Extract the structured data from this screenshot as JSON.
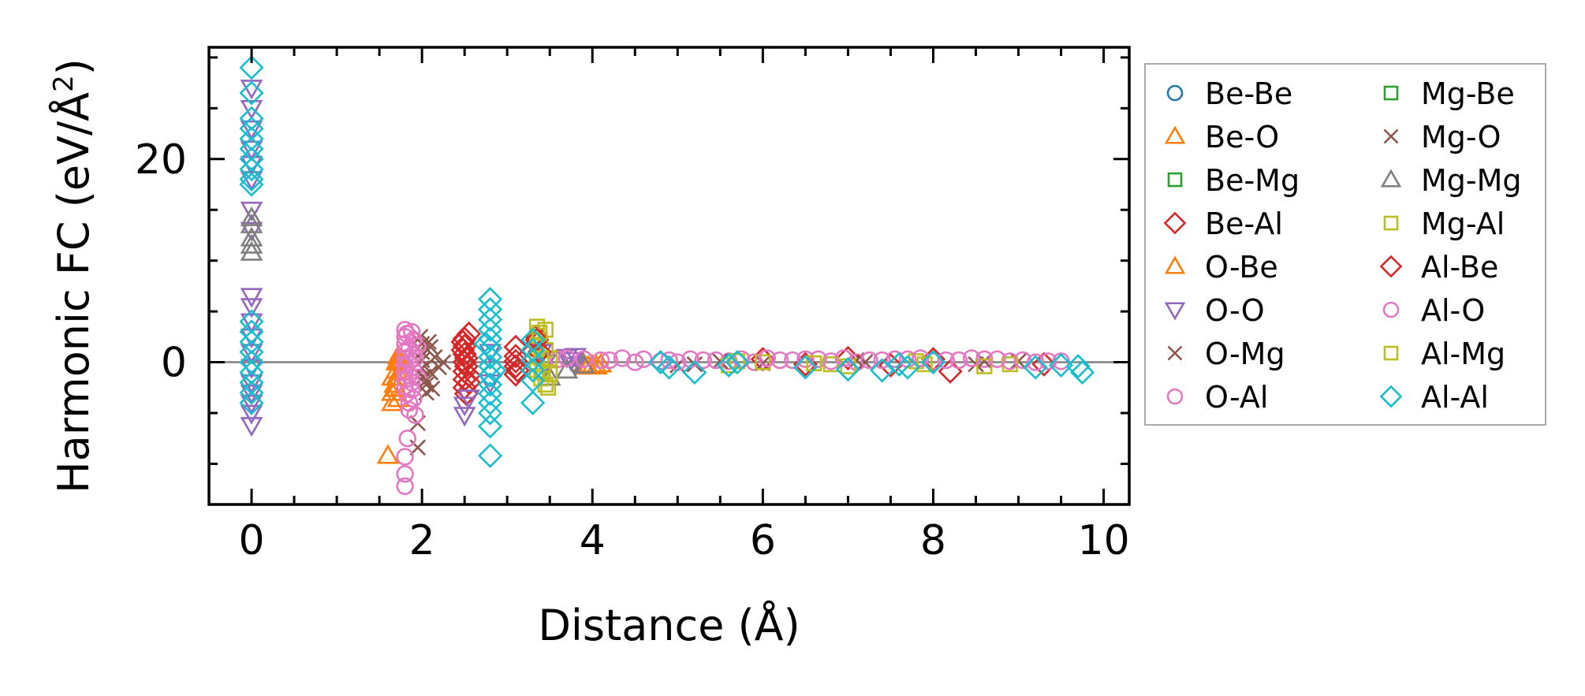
{
  "chart_data": {
    "type": "scatter",
    "title": "",
    "xlabel": "Distance (Å)",
    "ylabel_main": "Harmonic FC (eV/Å",
    "ylabel_sup": "2",
    "ylabel_tail": ")",
    "xlim": [
      -0.5,
      10.3
    ],
    "ylim": [
      -14,
      31
    ],
    "xticks": [
      0,
      2,
      4,
      6,
      8,
      10
    ],
    "xtick_labels": [
      "0",
      "2",
      "4",
      "6",
      "8",
      "10"
    ],
    "yticks": [
      0,
      20
    ],
    "ytick_labels": [
      "0",
      "20"
    ],
    "x_minor_step": 0.5,
    "y_minor_step": 5,
    "zero_line": true,
    "grid": false,
    "legend_position": "outside-right",
    "legend_columns": 2,
    "series": [
      {
        "name": "Be-Be",
        "marker": "circle",
        "color": "#1f77b4",
        "points": []
      },
      {
        "name": "Be-O",
        "marker": "triangle-up",
        "color": "#ff7f0e",
        "points": [
          [
            1.6,
            -9.2
          ],
          [
            1.65,
            -4.0
          ],
          [
            1.65,
            -3.0
          ],
          [
            1.68,
            -2.2
          ],
          [
            1.7,
            -1.5
          ],
          [
            1.7,
            -0.8
          ],
          [
            1.7,
            0.0
          ],
          [
            1.72,
            0.6
          ],
          [
            1.72,
            -3.6
          ],
          [
            1.75,
            -1.0
          ],
          [
            1.75,
            0.3
          ],
          [
            3.95,
            -0.4
          ],
          [
            4.0,
            -0.3
          ],
          [
            4.05,
            -0.4
          ]
        ]
      },
      {
        "name": "Be-Mg",
        "marker": "square",
        "color": "#2ca02c",
        "points": []
      },
      {
        "name": "Be-Al",
        "marker": "diamond",
        "color": "#d62728",
        "points": [
          [
            2.5,
            2.3
          ],
          [
            2.5,
            1.6
          ],
          [
            2.5,
            0.8
          ],
          [
            2.5,
            0.0
          ],
          [
            2.5,
            -0.9
          ],
          [
            2.5,
            -1.7
          ],
          [
            2.5,
            -2.5
          ],
          [
            2.52,
            -3.1
          ],
          [
            2.55,
            2.8
          ],
          [
            2.48,
            1.2
          ],
          [
            2.52,
            -0.4
          ],
          [
            2.55,
            -2.0
          ],
          [
            3.1,
            1.5
          ],
          [
            3.1,
            0.6
          ],
          [
            3.1,
            -0.4
          ],
          [
            3.1,
            -1.2
          ],
          [
            3.35,
            2.5
          ],
          [
            3.35,
            1.8
          ],
          [
            6.0,
            0.3
          ],
          [
            6.5,
            -0.2
          ],
          [
            7.0,
            0.4
          ],
          [
            7.5,
            -0.3
          ],
          [
            8.0,
            0.3
          ],
          [
            8.2,
            -0.9
          ],
          [
            9.3,
            -0.2
          ]
        ]
      },
      {
        "name": "O-Be",
        "marker": "triangle-up",
        "color": "#ff7f0e",
        "points": [
          [
            1.65,
            -1.5
          ],
          [
            1.7,
            -2.6
          ],
          [
            1.72,
            0.2
          ],
          [
            3.9,
            -0.2
          ],
          [
            4.1,
            -0.2
          ]
        ]
      },
      {
        "name": "O-O",
        "marker": "triangle-down",
        "color": "#9467bd",
        "points": [
          [
            0,
            27
          ],
          [
            0,
            25
          ],
          [
            0,
            23
          ],
          [
            0,
            21
          ],
          [
            0,
            19.5
          ],
          [
            0,
            18
          ],
          [
            0,
            15
          ],
          [
            0,
            13
          ],
          [
            0,
            6.5
          ],
          [
            0,
            5.5
          ],
          [
            0,
            4
          ],
          [
            0,
            2.5
          ],
          [
            0,
            1
          ],
          [
            0,
            -0.5
          ],
          [
            0,
            -2
          ],
          [
            0,
            -3
          ],
          [
            0,
            -4
          ],
          [
            0,
            -5
          ],
          [
            0,
            -6.2
          ],
          [
            2.5,
            -5.2
          ],
          [
            2.5,
            -4.2
          ],
          [
            2.55,
            -3.5
          ],
          [
            2.8,
            1.0
          ],
          [
            2.8,
            -2.0
          ],
          [
            3.4,
            1.0
          ],
          [
            3.45,
            0.0
          ],
          [
            3.7,
            0.5
          ],
          [
            3.75,
            0.2
          ],
          [
            3.8,
            0.6
          ],
          [
            3.8,
            -0.3
          ]
        ]
      },
      {
        "name": "O-Mg",
        "marker": "x",
        "color": "#8c564b",
        "points": [
          [
            1.95,
            -8.4
          ],
          [
            1.95,
            -6.0
          ],
          [
            1.98,
            2.5
          ],
          [
            2.0,
            1.8
          ],
          [
            2.0,
            1.0
          ],
          [
            2.0,
            0.2
          ],
          [
            2.0,
            -0.6
          ],
          [
            2.02,
            -1.4
          ],
          [
            2.05,
            -2.2
          ],
          [
            2.05,
            -3.0
          ],
          [
            2.08,
            2.0
          ],
          [
            2.1,
            -1.0
          ],
          [
            2.15,
            0.5
          ],
          [
            2.2,
            -0.5
          ],
          [
            2.25,
            0.0
          ],
          [
            5.0,
            -0.3
          ],
          [
            5.2,
            -0.2
          ],
          [
            7.1,
            0.2
          ],
          [
            8.5,
            -0.2
          ],
          [
            9.0,
            0.1
          ]
        ]
      },
      {
        "name": "O-Al",
        "marker": "circle",
        "color": "#e377c2",
        "points": [
          [
            1.8,
            -12.2
          ],
          [
            1.8,
            -9.3
          ],
          [
            1.83,
            -7.5
          ],
          [
            1.8,
            3.2
          ],
          [
            1.8,
            2.5
          ],
          [
            1.8,
            1.8
          ],
          [
            1.8,
            1.1
          ],
          [
            1.8,
            0.4
          ],
          [
            1.8,
            -0.3
          ],
          [
            1.8,
            -1.0
          ],
          [
            1.8,
            -1.7
          ],
          [
            1.8,
            -2.4
          ],
          [
            1.82,
            -3.1
          ],
          [
            1.85,
            -4.0
          ],
          [
            1.85,
            -4.7
          ],
          [
            1.88,
            3.0
          ],
          [
            1.88,
            -2.0
          ],
          [
            1.9,
            2.2
          ],
          [
            1.9,
            0.8
          ],
          [
            1.9,
            -0.8
          ],
          [
            1.92,
            -5.2
          ],
          [
            1.95,
            1.6
          ],
          [
            1.95,
            -1.5
          ],
          [
            3.6,
            0.3
          ],
          [
            4.2,
            0.2
          ],
          [
            4.5,
            0.0
          ],
          [
            4.8,
            0.1
          ],
          [
            5.0,
            0.0
          ],
          [
            5.3,
            0.2
          ],
          [
            5.6,
            0.1
          ],
          [
            5.9,
            0.0
          ],
          [
            6.2,
            0.2
          ],
          [
            6.5,
            0.3
          ],
          [
            6.8,
            0.1
          ],
          [
            7.1,
            0.0
          ],
          [
            7.4,
            0.2
          ],
          [
            7.7,
            0.3
          ],
          [
            8.0,
            0.1
          ],
          [
            8.3,
            0.2
          ],
          [
            8.6,
            0.3
          ],
          [
            8.9,
            0.1
          ],
          [
            9.2,
            0.0
          ],
          [
            9.5,
            0.1
          ]
        ]
      },
      {
        "name": "Mg-Be",
        "marker": "square",
        "color": "#2ca02c",
        "points": []
      },
      {
        "name": "Mg-O",
        "marker": "x",
        "color": "#8c564b",
        "points": [
          [
            2.05,
            -1.8
          ],
          [
            2.1,
            1.5
          ],
          [
            2.12,
            -2.6
          ],
          [
            5.5,
            0.1
          ],
          [
            6.0,
            -0.1
          ],
          [
            7.2,
            0.0
          ],
          [
            8.6,
            0.1
          ]
        ]
      },
      {
        "name": "Mg-Mg",
        "marker": "triangle-up",
        "color": "#7f7f7f",
        "points": [
          [
            0,
            10.8
          ],
          [
            0,
            11.5
          ],
          [
            0,
            12.2
          ],
          [
            0,
            13.5
          ],
          [
            0,
            14.2
          ],
          [
            3.5,
            -1.5
          ],
          [
            3.7,
            -0.8
          ],
          [
            3.9,
            -0.3
          ]
        ]
      },
      {
        "name": "Mg-Al",
        "marker": "square",
        "color": "#bcbd22",
        "points": [
          [
            3.35,
            3.5
          ],
          [
            3.35,
            2.6
          ],
          [
            3.35,
            1.7
          ],
          [
            3.35,
            0.8
          ],
          [
            3.35,
            0.0
          ],
          [
            3.35,
            -0.8
          ],
          [
            3.4,
            -1.6
          ],
          [
            3.45,
            3.2
          ],
          [
            3.45,
            1.2
          ],
          [
            3.45,
            -2.2
          ],
          [
            3.5,
            0.4
          ],
          [
            3.5,
            -1.2
          ],
          [
            5.6,
            -0.3
          ],
          [
            6.0,
            0.0
          ],
          [
            6.8,
            -0.2
          ],
          [
            7.0,
            -0.4
          ],
          [
            7.8,
            0.1
          ],
          [
            8.6,
            -0.4
          ],
          [
            8.9,
            -0.2
          ]
        ]
      },
      {
        "name": "Al-Be",
        "marker": "diamond",
        "color": "#d62728",
        "points": [
          [
            2.48,
            2.0
          ],
          [
            2.52,
            0.4
          ],
          [
            2.55,
            -1.3
          ],
          [
            3.1,
            0.1
          ],
          [
            3.12,
            -0.8
          ],
          [
            3.35,
            2.2
          ],
          [
            3.38,
            1.0
          ]
        ]
      },
      {
        "name": "Al-O",
        "marker": "circle",
        "color": "#e377c2",
        "points": [
          [
            1.8,
            -11.0
          ],
          [
            1.82,
            2.8
          ],
          [
            1.85,
            1.4
          ],
          [
            1.85,
            0.0
          ],
          [
            1.85,
            -1.3
          ],
          [
            1.88,
            -2.7
          ],
          [
            1.9,
            -3.6
          ],
          [
            1.92,
            0.4
          ],
          [
            3.7,
            0.4
          ],
          [
            3.9,
            0.3
          ],
          [
            4.1,
            0.2
          ],
          [
            4.35,
            0.4
          ],
          [
            4.6,
            0.3
          ],
          [
            4.9,
            0.2
          ],
          [
            5.15,
            0.3
          ],
          [
            5.45,
            0.2
          ],
          [
            5.75,
            0.3
          ],
          [
            6.05,
            0.4
          ],
          [
            6.35,
            0.2
          ],
          [
            6.65,
            0.3
          ],
          [
            6.95,
            0.4
          ],
          [
            7.25,
            0.2
          ],
          [
            7.55,
            0.3
          ],
          [
            7.85,
            0.4
          ],
          [
            8.15,
            0.2
          ],
          [
            8.45,
            0.4
          ],
          [
            8.75,
            0.3
          ],
          [
            9.05,
            0.2
          ],
          [
            9.35,
            0.1
          ]
        ]
      },
      {
        "name": "Al-Mg",
        "marker": "square",
        "color": "#bcbd22",
        "points": [
          [
            3.38,
            2.9
          ],
          [
            3.4,
            0.4
          ],
          [
            3.42,
            -1.0
          ],
          [
            3.48,
            -2.5
          ],
          [
            5.7,
            0.1
          ],
          [
            6.6,
            -0.1
          ],
          [
            7.9,
            -0.2
          ]
        ]
      },
      {
        "name": "Al-Al",
        "marker": "diamond",
        "color": "#17becf",
        "points": [
          [
            0,
            29
          ],
          [
            0,
            26.5
          ],
          [
            0,
            24
          ],
          [
            0,
            23
          ],
          [
            0,
            22
          ],
          [
            0,
            21
          ],
          [
            0,
            20
          ],
          [
            0,
            19
          ],
          [
            0,
            18
          ],
          [
            0,
            17.5
          ],
          [
            0,
            4
          ],
          [
            0,
            3
          ],
          [
            0,
            2
          ],
          [
            0,
            1
          ],
          [
            0,
            0
          ],
          [
            0,
            -1
          ],
          [
            0,
            -2
          ],
          [
            0,
            -3
          ],
          [
            0,
            -4
          ],
          [
            2.8,
            6.2
          ],
          [
            2.8,
            5.2
          ],
          [
            2.8,
            4.2
          ],
          [
            2.8,
            3.2
          ],
          [
            2.8,
            2.3
          ],
          [
            2.8,
            1.4
          ],
          [
            2.8,
            0.5
          ],
          [
            2.8,
            -0.4
          ],
          [
            2.8,
            -1.3
          ],
          [
            2.8,
            -2.2
          ],
          [
            2.8,
            -3.1
          ],
          [
            2.8,
            -4.0
          ],
          [
            2.8,
            -5.0
          ],
          [
            2.8,
            -6.3
          ],
          [
            2.8,
            -9.2
          ],
          [
            2.75,
            1.8
          ],
          [
            2.85,
            -0.8
          ],
          [
            3.3,
            2.2
          ],
          [
            3.3,
            1.2
          ],
          [
            3.3,
            0.2
          ],
          [
            3.3,
            -0.8
          ],
          [
            3.3,
            -1.8
          ],
          [
            3.3,
            -4.0
          ],
          [
            4.8,
            0.0
          ],
          [
            4.9,
            -0.5
          ],
          [
            5.2,
            -1.0
          ],
          [
            5.6,
            -0.3
          ],
          [
            5.7,
            0.0
          ],
          [
            6.5,
            -0.5
          ],
          [
            7.0,
            -0.7
          ],
          [
            7.4,
            -0.8
          ],
          [
            7.6,
            -0.2
          ],
          [
            7.7,
            -0.5
          ],
          [
            8.0,
            0.0
          ],
          [
            9.2,
            -0.5
          ],
          [
            9.5,
            -0.3
          ],
          [
            9.7,
            -0.4
          ],
          [
            9.75,
            -1.0
          ]
        ]
      }
    ]
  }
}
